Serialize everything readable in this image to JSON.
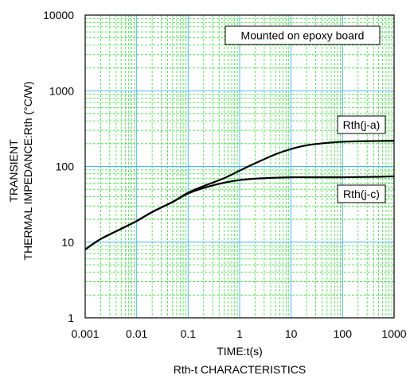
{
  "chart_data": {
    "type": "line",
    "title": "",
    "caption": "Rth-t CHARACTERISTICS",
    "xlabel": "TIME:t(s)",
    "ylabel_lines": [
      "TRANSIENT",
      "THERMAL IMPEDANCE:Rth (°C/W)"
    ],
    "xscale": "log",
    "yscale": "log",
    "xlim": [
      0.001,
      1000
    ],
    "ylim": [
      1,
      10000
    ],
    "x_tick_labels": [
      "0.001",
      "0.01",
      "0.1",
      "1",
      "10",
      "100",
      "1000"
    ],
    "y_tick_labels": [
      "1",
      "10",
      "100",
      "1000",
      "10000"
    ],
    "grid": true,
    "annotation": "Mounted on epoxy board",
    "series": [
      {
        "name": "Rth(j-a)",
        "x": [
          0.001,
          0.002,
          0.005,
          0.01,
          0.02,
          0.05,
          0.1,
          0.2,
          0.5,
          1,
          2,
          5,
          10,
          20,
          50,
          100,
          200,
          500,
          1000
        ],
        "y": [
          8,
          11,
          15,
          19,
          25,
          34,
          45,
          55,
          70,
          88,
          110,
          145,
          170,
          190,
          205,
          212,
          215,
          217,
          218
        ]
      },
      {
        "name": "Rth(j-c)",
        "x": [
          0.001,
          0.002,
          0.005,
          0.01,
          0.02,
          0.05,
          0.1,
          0.2,
          0.5,
          1,
          2,
          5,
          10,
          20,
          50,
          100,
          200,
          500,
          1000
        ],
        "y": [
          8,
          11,
          15,
          19,
          25,
          34,
          44,
          52,
          61,
          66,
          69,
          71,
          72,
          72,
          72,
          72,
          72.5,
          73,
          74
        ]
      }
    ]
  },
  "colors": {
    "major_grid": "#4db8ff",
    "minor_grid": "#33dd33",
    "curve": "#000000"
  }
}
